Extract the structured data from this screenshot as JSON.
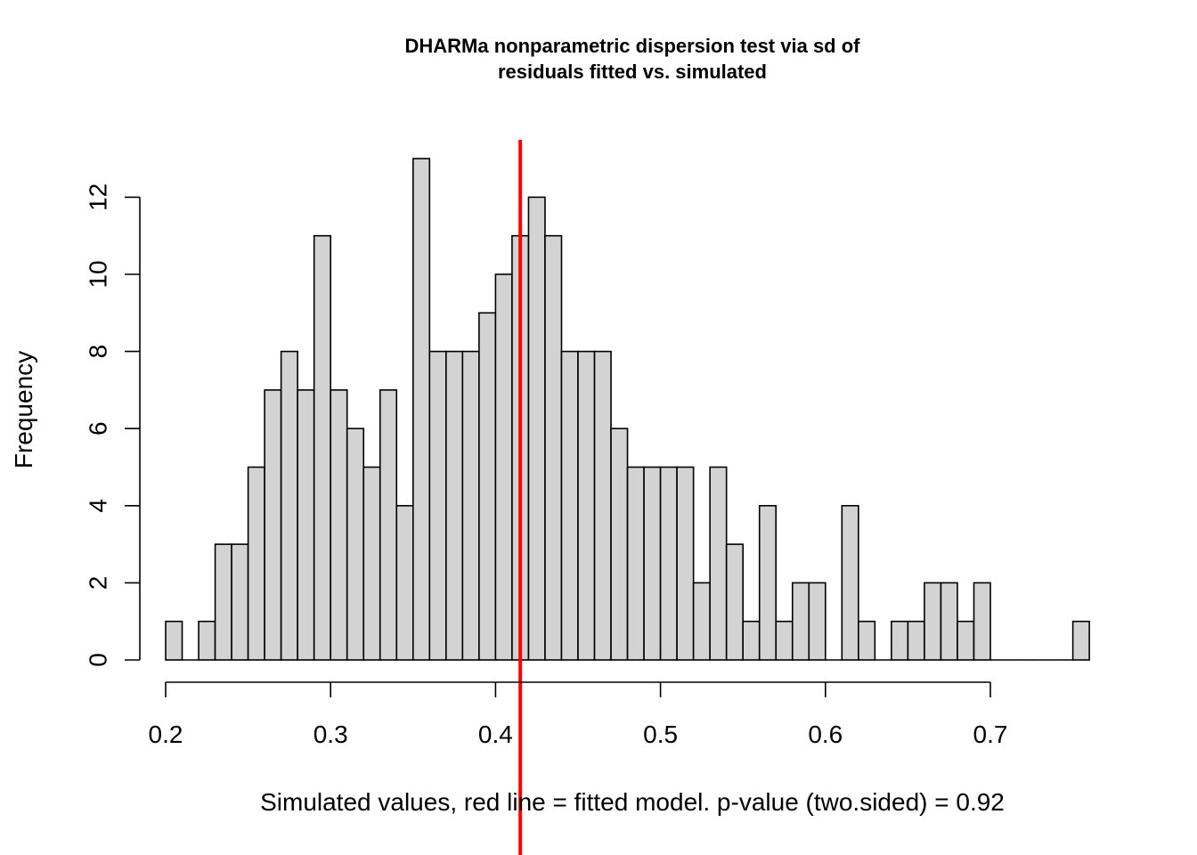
{
  "chart_data": {
    "type": "bar",
    "title_lines": [
      "DHARMa nonparametric dispersion test via sd of",
      "residuals fitted vs. simulated"
    ],
    "xlabel": "Simulated values, red line = fitted model. p-value (two.sided) = 0.92",
    "ylabel": "Frequency",
    "xlim": [
      0.2,
      0.76
    ],
    "ylim": [
      0,
      13
    ],
    "x_ticks": [
      0.2,
      0.3,
      0.4,
      0.5,
      0.6,
      0.7
    ],
    "x_tick_labels": [
      "0.2",
      "0.3",
      "0.4",
      "0.5",
      "0.6",
      "0.7"
    ],
    "y_ticks": [
      0,
      2,
      4,
      6,
      8,
      10,
      12
    ],
    "y_tick_labels": [
      "0",
      "2",
      "4",
      "6",
      "8",
      "10",
      "12"
    ],
    "bin_width": 0.01,
    "bin_start": 0.2,
    "counts": [
      1,
      0,
      1,
      3,
      3,
      5,
      7,
      8,
      7,
      11,
      7,
      6,
      5,
      7,
      4,
      13,
      8,
      8,
      8,
      9,
      10,
      11,
      12,
      11,
      8,
      8,
      8,
      6,
      5,
      5,
      5,
      5,
      2,
      5,
      3,
      1,
      4,
      1,
      2,
      2,
      0,
      4,
      1,
      0,
      1,
      1,
      2,
      2,
      1,
      2,
      0,
      0,
      0,
      0,
      0,
      1
    ],
    "reference_line": {
      "x": 0.415,
      "color": "#ff0000",
      "label": "fitted model"
    },
    "bar_fill": "#d3d3d3",
    "bar_stroke": "#000000"
  }
}
